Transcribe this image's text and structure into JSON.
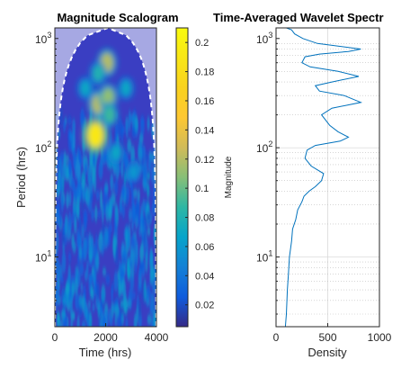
{
  "chart_data": [
    {
      "type": "heatmap",
      "title": "Magnitude Scalogram",
      "xlabel": "Time (hrs)",
      "ylabel": "Period (hrs)",
      "xlim": [
        0,
        4000
      ],
      "x_ticks": [
        "0",
        "2000",
        "4000"
      ],
      "yscale": "log",
      "ylim": [
        2.3,
        1250
      ],
      "y_ticks": [
        {
          "base": "10",
          "exp": "1",
          "value": 10
        },
        {
          "base": "10",
          "exp": "2",
          "value": 100
        },
        {
          "base": "10",
          "exp": "3",
          "value": 1000
        }
      ],
      "cone_of_influence": "white dashed",
      "colorbar": {
        "label": "Magnitude",
        "range": [
          0.005,
          0.21
        ],
        "ticks": [
          "0.02",
          "0.04",
          "0.06",
          "0.08",
          "0.1",
          "0.12",
          "0.14",
          "0.16",
          "0.18",
          "0.2"
        ],
        "tick_values": [
          0.02,
          0.04,
          0.06,
          0.08,
          0.1,
          0.12,
          0.14,
          0.16,
          0.18,
          0.2
        ]
      },
      "peaks": [
        {
          "time": 1600,
          "period": 130,
          "magnitude": 0.19
        },
        {
          "time": 1700,
          "period": 250,
          "magnitude": 0.12
        },
        {
          "time": 2050,
          "period": 600,
          "magnitude": 0.12
        },
        {
          "time": 2100,
          "period": 290,
          "magnitude": 0.11
        },
        {
          "time": 1700,
          "period": 480,
          "magnitude": 0.08
        },
        {
          "time": 2150,
          "period": 200,
          "magnitude": 0.09
        },
        {
          "time": 1200,
          "period": 350,
          "magnitude": 0.07
        },
        {
          "time": 2800,
          "period": 350,
          "magnitude": 0.07
        },
        {
          "time": 2400,
          "period": 90,
          "magnitude": 0.07
        },
        {
          "time": 3100,
          "period": 60,
          "magnitude": 0.06
        }
      ]
    },
    {
      "type": "line",
      "title": "Time-Averaged Wavelet Spectr",
      "xlabel": "Density",
      "xlim": [
        0,
        1000
      ],
      "x_ticks": [
        "0",
        "500",
        "1000"
      ],
      "yscale": "log",
      "ylim": [
        2.3,
        1250
      ],
      "y_ticks": [
        {
          "base": "10",
          "exp": "1",
          "value": 10
        },
        {
          "base": "10",
          "exp": "2",
          "value": 100
        },
        {
          "base": "10",
          "exp": "3",
          "value": 1000
        }
      ],
      "grid": true,
      "series": [
        {
          "x": [
            90,
            100,
            110,
            120,
            130,
            150,
            160,
            190,
            210,
            250,
            270,
            320,
            380,
            440,
            460,
            340,
            280,
            300,
            380,
            620,
            700,
            600,
            520,
            440,
            540,
            820,
            660,
            420,
            380,
            540,
            800,
            600,
            330,
            250,
            280,
            420,
            700,
            820,
            400,
            260,
            180,
            150,
            100
          ],
          "y": [
            2.3,
            3,
            5,
            7,
            10,
            14,
            18,
            22,
            27,
            32,
            36,
            40,
            44,
            50,
            58,
            68,
            80,
            95,
            105,
            115,
            125,
            140,
            160,
            200,
            230,
            260,
            300,
            330,
            370,
            400,
            450,
            500,
            550,
            600,
            680,
            720,
            760,
            800,
            900,
            1000,
            1100,
            1200,
            1250
          ]
        }
      ]
    }
  ]
}
